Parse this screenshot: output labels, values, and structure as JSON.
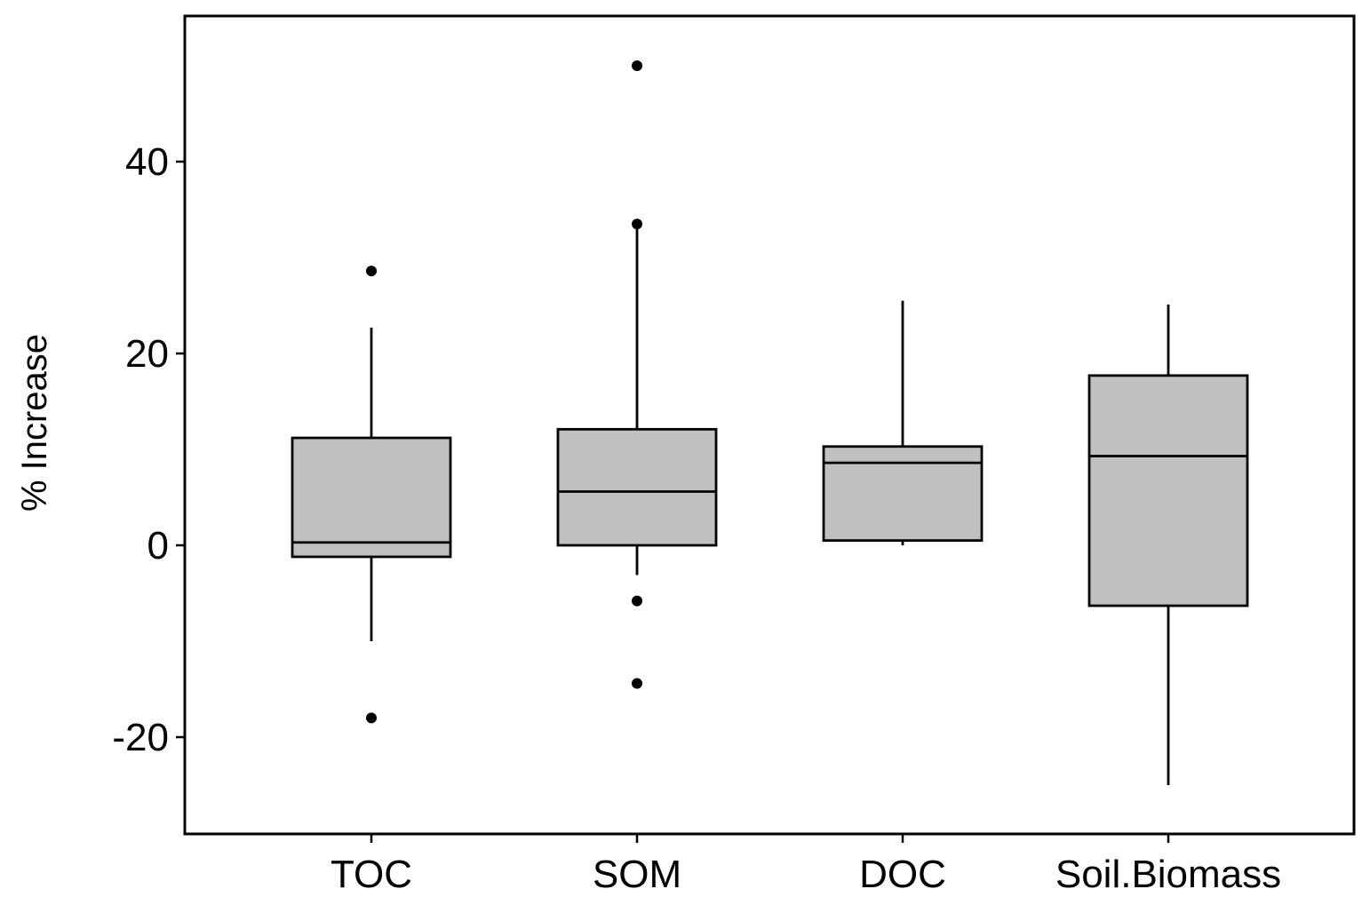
{
  "chart_data": {
    "type": "boxplot",
    "title": "",
    "xlabel": "",
    "ylabel": "% Increase",
    "ylim": [
      -30,
      55
    ],
    "yticks": [
      -20,
      0,
      20,
      40
    ],
    "ytick_labels": [
      "-20",
      "0",
      "20",
      "40"
    ],
    "grid": false,
    "categories": [
      "TOC",
      "SOM",
      "DOC",
      "Soil.Biomass"
    ],
    "boxes": [
      {
        "category": "TOC",
        "whisker_low": -10,
        "q1": -1.2,
        "median": 0.3,
        "q3": 11.2,
        "whisker_high": 22.7,
        "outliers": [
          28.6,
          -18
        ]
      },
      {
        "category": "SOM",
        "whisker_low": -3.1,
        "q1": 0,
        "median": 5.6,
        "q3": 12.1,
        "whisker_high": 33.5,
        "outliers": [
          50,
          33.5,
          -5.8,
          -14.4
        ]
      },
      {
        "category": "DOC",
        "whisker_low": 0,
        "q1": 0.5,
        "median": 8.6,
        "q3": 10.3,
        "whisker_high": 25.5,
        "outliers": []
      },
      {
        "category": "Soil.Biomass",
        "whisker_low": -25,
        "q1": -6.3,
        "median": 9.3,
        "q3": 17.7,
        "whisker_high": 25.1,
        "outliers": []
      }
    ],
    "box_fill": "#c0c0c0",
    "line_color": "#000000"
  }
}
